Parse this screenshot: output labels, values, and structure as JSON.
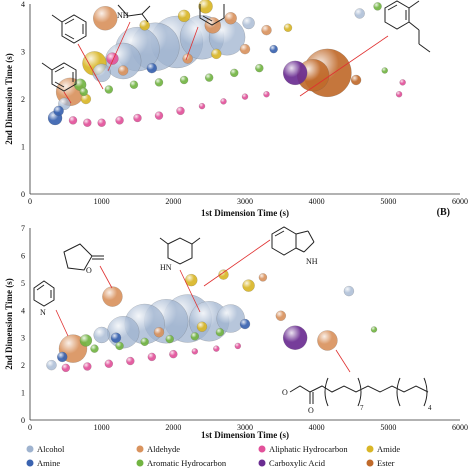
{
  "panel_label_b": "(B)",
  "chart_data": [
    {
      "type": "scatter",
      "panel": "A",
      "xlabel": "1st Dimension Time (s)",
      "ylabel": "2nd Dimension Time (s)",
      "xlim": [
        0,
        6000
      ],
      "ylim": [
        0,
        4
      ],
      "xticks": [
        "0",
        "1000",
        "2000",
        "3000",
        "4000",
        "5000",
        "6000"
      ],
      "yticks": [
        "0",
        "1",
        "2",
        "3",
        "4"
      ],
      "points": [
        {
          "x": 350,
          "y": 1.6,
          "r": 7,
          "class": "Amine"
        },
        {
          "x": 400,
          "y": 1.75,
          "r": 5,
          "class": "Amine"
        },
        {
          "x": 480,
          "y": 1.9,
          "r": 6,
          "class": "Alcohol"
        },
        {
          "x": 560,
          "y": 2.15,
          "r": 14,
          "class": "Aldehyde"
        },
        {
          "x": 700,
          "y": 2.3,
          "r": 6,
          "class": "Aromatic Hydrocarbon"
        },
        {
          "x": 780,
          "y": 2.0,
          "r": 5,
          "class": "Amide"
        },
        {
          "x": 900,
          "y": 2.75,
          "r": 12,
          "class": "Amide"
        },
        {
          "x": 1000,
          "y": 2.55,
          "r": 9,
          "class": "Alcohol"
        },
        {
          "x": 1150,
          "y": 2.85,
          "r": 6,
          "class": "Aliphatic Hydrocarbon"
        },
        {
          "x": 1300,
          "y": 2.8,
          "r": 18,
          "class": "Alcohol"
        },
        {
          "x": 1500,
          "y": 3.05,
          "r": 22,
          "class": "Alcohol"
        },
        {
          "x": 1750,
          "y": 3.1,
          "r": 24,
          "class": "Alcohol"
        },
        {
          "x": 2050,
          "y": 3.2,
          "r": 26,
          "class": "Alcohol"
        },
        {
          "x": 2400,
          "y": 3.3,
          "r": 22,
          "class": "Alcohol"
        },
        {
          "x": 2750,
          "y": 3.3,
          "r": 18,
          "class": "Alcohol"
        },
        {
          "x": 2550,
          "y": 3.55,
          "r": 8,
          "class": "Aldehyde"
        },
        {
          "x": 2800,
          "y": 3.7,
          "r": 6,
          "class": "Aldehyde"
        },
        {
          "x": 2450,
          "y": 3.95,
          "r": 7,
          "class": "Amide"
        },
        {
          "x": 2150,
          "y": 3.75,
          "r": 6,
          "class": "Amide"
        },
        {
          "x": 1050,
          "y": 3.7,
          "r": 12,
          "class": "Aldehyde"
        },
        {
          "x": 1600,
          "y": 3.55,
          "r": 5,
          "class": "Amide"
        },
        {
          "x": 3050,
          "y": 3.6,
          "r": 6,
          "class": "Alcohol"
        },
        {
          "x": 3300,
          "y": 3.45,
          "r": 5,
          "class": "Aldehyde"
        },
        {
          "x": 3600,
          "y": 3.5,
          "r": 4,
          "class": "Amide"
        },
        {
          "x": 4600,
          "y": 3.8,
          "r": 5,
          "class": "Alcohol"
        },
        {
          "x": 4850,
          "y": 3.95,
          "r": 4,
          "class": "Aromatic Hydrocarbon"
        },
        {
          "x": 3700,
          "y": 2.55,
          "r": 12,
          "class": "Carboxylic Acid"
        },
        {
          "x": 4150,
          "y": 2.55,
          "r": 24,
          "class": "Ester"
        },
        {
          "x": 3950,
          "y": 2.5,
          "r": 16,
          "class": "Ester"
        },
        {
          "x": 4550,
          "y": 2.4,
          "r": 5,
          "class": "Ester"
        },
        {
          "x": 5200,
          "y": 2.35,
          "r": 3,
          "class": "Aliphatic Hydrocarbon"
        },
        {
          "x": 5150,
          "y": 2.1,
          "r": 3,
          "class": "Aliphatic Hydrocarbon"
        },
        {
          "x": 4950,
          "y": 2.6,
          "r": 3,
          "class": "Aromatic Hydrocarbon"
        },
        {
          "x": 600,
          "y": 1.55,
          "r": 4,
          "class": "Aliphatic Hydrocarbon"
        },
        {
          "x": 800,
          "y": 1.5,
          "r": 4,
          "class": "Aliphatic Hydrocarbon"
        },
        {
          "x": 1000,
          "y": 1.5,
          "r": 4,
          "class": "Aliphatic Hydrocarbon"
        },
        {
          "x": 1250,
          "y": 1.55,
          "r": 4,
          "class": "Aliphatic Hydrocarbon"
        },
        {
          "x": 1500,
          "y": 1.6,
          "r": 4,
          "class": "Aliphatic Hydrocarbon"
        },
        {
          "x": 1800,
          "y": 1.65,
          "r": 4,
          "class": "Aliphatic Hydrocarbon"
        },
        {
          "x": 2100,
          "y": 1.75,
          "r": 4,
          "class": "Aliphatic Hydrocarbon"
        },
        {
          "x": 2400,
          "y": 1.85,
          "r": 3,
          "class": "Aliphatic Hydrocarbon"
        },
        {
          "x": 2700,
          "y": 1.95,
          "r": 3,
          "class": "Aliphatic Hydrocarbon"
        },
        {
          "x": 3000,
          "y": 2.05,
          "r": 3,
          "class": "Aliphatic Hydrocarbon"
        },
        {
          "x": 3300,
          "y": 2.1,
          "r": 3,
          "class": "Aliphatic Hydrocarbon"
        },
        {
          "x": 750,
          "y": 2.15,
          "r": 4,
          "class": "Aromatic Hydrocarbon"
        },
        {
          "x": 1100,
          "y": 2.2,
          "r": 4,
          "class": "Aromatic Hydrocarbon"
        },
        {
          "x": 1450,
          "y": 2.3,
          "r": 4,
          "class": "Aromatic Hydrocarbon"
        },
        {
          "x": 1800,
          "y": 2.35,
          "r": 4,
          "class": "Aromatic Hydrocarbon"
        },
        {
          "x": 2150,
          "y": 2.4,
          "r": 4,
          "class": "Aromatic Hydrocarbon"
        },
        {
          "x": 2500,
          "y": 2.45,
          "r": 4,
          "class": "Aromatic Hydrocarbon"
        },
        {
          "x": 2850,
          "y": 2.55,
          "r": 4,
          "class": "Aromatic Hydrocarbon"
        },
        {
          "x": 3200,
          "y": 2.65,
          "r": 4,
          "class": "Aromatic Hydrocarbon"
        },
        {
          "x": 1300,
          "y": 2.6,
          "r": 5,
          "class": "Aldehyde"
        },
        {
          "x": 1700,
          "y": 2.65,
          "r": 5,
          "class": "Amine"
        },
        {
          "x": 2200,
          "y": 2.85,
          "r": 5,
          "class": "Aldehyde"
        },
        {
          "x": 2600,
          "y": 2.95,
          "r": 5,
          "class": "Amide"
        },
        {
          "x": 3000,
          "y": 3.05,
          "r": 5,
          "class": "Aldehyde"
        },
        {
          "x": 3400,
          "y": 3.05,
          "r": 4,
          "class": "Amine"
        }
      ]
    },
    {
      "type": "scatter",
      "panel": "B",
      "xlabel": "1st Dimension Time (s)",
      "ylabel": "2nd Dimension Time (s)",
      "xlim": [
        0,
        6000
      ],
      "ylim": [
        0,
        7
      ],
      "xticks": [
        "0",
        "1000",
        "2000",
        "3000",
        "4000",
        "5000",
        "6000"
      ],
      "yticks": [
        "0",
        "1",
        "2",
        "3",
        "4",
        "5",
        "6",
        "7"
      ],
      "points": [
        {
          "x": 300,
          "y": 2.0,
          "r": 5,
          "class": "Alcohol"
        },
        {
          "x": 450,
          "y": 2.3,
          "r": 5,
          "class": "Amine"
        },
        {
          "x": 600,
          "y": 2.6,
          "r": 14,
          "class": "Aldehyde"
        },
        {
          "x": 780,
          "y": 2.9,
          "r": 6,
          "class": "Aromatic Hydrocarbon"
        },
        {
          "x": 1000,
          "y": 3.1,
          "r": 8,
          "class": "Alcohol"
        },
        {
          "x": 1150,
          "y": 4.5,
          "r": 10,
          "class": "Aldehyde"
        },
        {
          "x": 1300,
          "y": 3.2,
          "r": 16,
          "class": "Alcohol"
        },
        {
          "x": 1600,
          "y": 3.5,
          "r": 20,
          "class": "Alcohol"
        },
        {
          "x": 1900,
          "y": 3.6,
          "r": 22,
          "class": "Alcohol"
        },
        {
          "x": 2200,
          "y": 3.7,
          "r": 24,
          "class": "Alcohol"
        },
        {
          "x": 2500,
          "y": 3.6,
          "r": 20,
          "class": "Alcohol"
        },
        {
          "x": 2800,
          "y": 3.7,
          "r": 14,
          "class": "Alcohol"
        },
        {
          "x": 2250,
          "y": 5.1,
          "r": 6,
          "class": "Amide"
        },
        {
          "x": 2700,
          "y": 5.3,
          "r": 5,
          "class": "Amide"
        },
        {
          "x": 3050,
          "y": 4.9,
          "r": 6,
          "class": "Amide"
        },
        {
          "x": 3250,
          "y": 5.2,
          "r": 4,
          "class": "Aldehyde"
        },
        {
          "x": 3700,
          "y": 3.0,
          "r": 12,
          "class": "Carboxylic Acid"
        },
        {
          "x": 4150,
          "y": 2.9,
          "r": 10,
          "class": "Aldehyde"
        },
        {
          "x": 4450,
          "y": 4.7,
          "r": 5,
          "class": "Alcohol"
        },
        {
          "x": 3500,
          "y": 3.8,
          "r": 5,
          "class": "Aldehyde"
        },
        {
          "x": 4800,
          "y": 3.3,
          "r": 3,
          "class": "Aromatic Hydrocarbon"
        },
        {
          "x": 500,
          "y": 1.9,
          "r": 4,
          "class": "Aliphatic Hydrocarbon"
        },
        {
          "x": 800,
          "y": 1.95,
          "r": 4,
          "class": "Aliphatic Hydrocarbon"
        },
        {
          "x": 1100,
          "y": 2.05,
          "r": 4,
          "class": "Aliphatic Hydrocarbon"
        },
        {
          "x": 1400,
          "y": 2.15,
          "r": 4,
          "class": "Aliphatic Hydrocarbon"
        },
        {
          "x": 1700,
          "y": 2.3,
          "r": 4,
          "class": "Aliphatic Hydrocarbon"
        },
        {
          "x": 2000,
          "y": 2.4,
          "r": 4,
          "class": "Aliphatic Hydrocarbon"
        },
        {
          "x": 2300,
          "y": 2.5,
          "r": 3,
          "class": "Aliphatic Hydrocarbon"
        },
        {
          "x": 2600,
          "y": 2.6,
          "r": 3,
          "class": "Aliphatic Hydrocarbon"
        },
        {
          "x": 2900,
          "y": 2.7,
          "r": 3,
          "class": "Aliphatic Hydrocarbon"
        },
        {
          "x": 900,
          "y": 2.6,
          "r": 4,
          "class": "Aromatic Hydrocarbon"
        },
        {
          "x": 1250,
          "y": 2.7,
          "r": 4,
          "class": "Aromatic Hydrocarbon"
        },
        {
          "x": 1600,
          "y": 2.85,
          "r": 4,
          "class": "Aromatic Hydrocarbon"
        },
        {
          "x": 1950,
          "y": 2.95,
          "r": 4,
          "class": "Aromatic Hydrocarbon"
        },
        {
          "x": 2300,
          "y": 3.05,
          "r": 4,
          "class": "Aromatic Hydrocarbon"
        },
        {
          "x": 2650,
          "y": 3.2,
          "r": 4,
          "class": "Aromatic Hydrocarbon"
        },
        {
          "x": 1200,
          "y": 3.0,
          "r": 5,
          "class": "Amine"
        },
        {
          "x": 1800,
          "y": 3.2,
          "r": 5,
          "class": "Aldehyde"
        },
        {
          "x": 2400,
          "y": 3.4,
          "r": 5,
          "class": "Amide"
        },
        {
          "x": 3000,
          "y": 3.5,
          "r": 5,
          "class": "Amine"
        }
      ]
    }
  ],
  "legend": [
    {
      "label": "Alcohol",
      "color": "#9fb3cf"
    },
    {
      "label": "Aldehyde",
      "color": "#d9935e"
    },
    {
      "label": "Aliphatic Hydrocarbon",
      "color": "#e2519a"
    },
    {
      "label": "Amide",
      "color": "#d9b627"
    },
    {
      "label": "Amine",
      "color": "#3a63b0"
    },
    {
      "label": "Aromatic Hydrocarbon",
      "color": "#72b442"
    },
    {
      "label": "Carboxylic Acid",
      "color": "#6a2c91"
    },
    {
      "label": "Ester",
      "color": "#c06a2b"
    }
  ],
  "structure_labels": {
    "nh": "NH",
    "hn": "HN",
    "n": "N",
    "o": "O",
    "sub7": "7",
    "sub4": "4"
  }
}
